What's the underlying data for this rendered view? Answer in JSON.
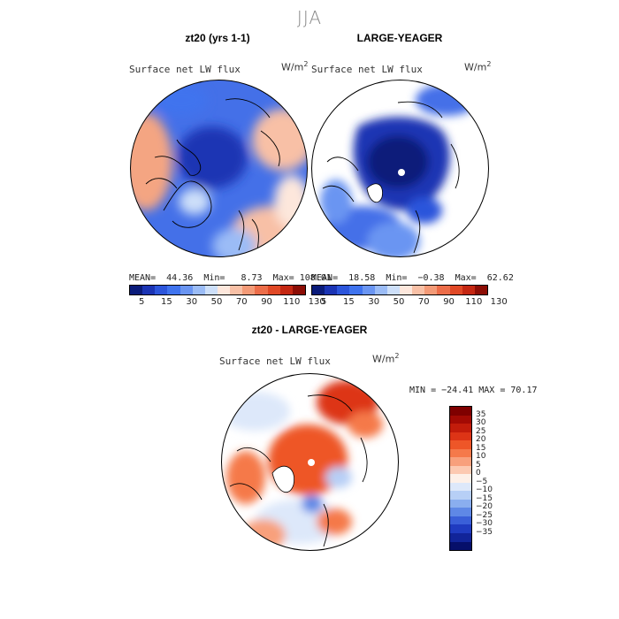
{
  "season": "JJA",
  "chart_data": [
    {
      "type": "heatmap",
      "projection": "north-polar-stereographic",
      "title": "zt20 (yrs 1-1)",
      "variable": "Surface net LW flux",
      "units": "W/m",
      "units_power": "2",
      "mean_label": "MEAN=",
      "mean": "44.36",
      "min_label": "Min=",
      "min": "8.73",
      "max_label": "Max=",
      "max": "108.01",
      "colorbar_ticks": [
        "5",
        "15",
        "30",
        "50",
        "70",
        "90",
        "110",
        "130"
      ],
      "colorbar_colors": [
        "#0a1b7a",
        "#1b34b4",
        "#2c55db",
        "#3f73ee",
        "#6a95f2",
        "#9bbcf6",
        "#cddff9",
        "#fde7dc",
        "#f8c0a6",
        "#f39a77",
        "#ec6d49",
        "#e04826",
        "#c42712",
        "#8c0d05"
      ]
    },
    {
      "type": "heatmap",
      "projection": "north-polar-stereographic",
      "title": "LARGE-YEAGER",
      "variable": "Surface net LW flux",
      "units": "W/m",
      "units_power": "2",
      "mean_label": "MEAN=",
      "mean": "18.58",
      "min_label": "Min=",
      "min": "−0.38",
      "max_label": "Max=",
      "max": "62.62",
      "colorbar_ticks": [
        "5",
        "15",
        "30",
        "50",
        "70",
        "90",
        "110",
        "130"
      ],
      "colorbar_colors": [
        "#0a1b7a",
        "#1b34b4",
        "#2c55db",
        "#3f73ee",
        "#6a95f2",
        "#9bbcf6",
        "#cddff9",
        "#fde7dc",
        "#f8c0a6",
        "#f39a77",
        "#ec6d49",
        "#e04826",
        "#c42712",
        "#8c0d05"
      ]
    },
    {
      "type": "heatmap",
      "projection": "north-polar-stereographic",
      "title": "zt20 - LARGE-YEAGER",
      "variable": "Surface net LW flux",
      "units": "W/m",
      "units_power": "2",
      "minmax_text": "MIN = −24.41 MAX =  70.17",
      "colorbar_ticks": [
        "35",
        "30",
        "25",
        "20",
        "15",
        "10",
        "5",
        "0",
        "−5",
        "−10",
        "−15",
        "−20",
        "−25",
        "−30",
        "−35"
      ],
      "colorbar_colors": [
        "#7f0000",
        "#a30a04",
        "#c21c0b",
        "#dd3416",
        "#ee5628",
        "#f5794a",
        "#f8a07c",
        "#fcc9b1",
        "#fdf0e8",
        "#dde8fa",
        "#b7cff6",
        "#8aaeef",
        "#5f88e6",
        "#3a5fd8",
        "#1f3bc0",
        "#112499",
        "#060f6a"
      ]
    }
  ]
}
